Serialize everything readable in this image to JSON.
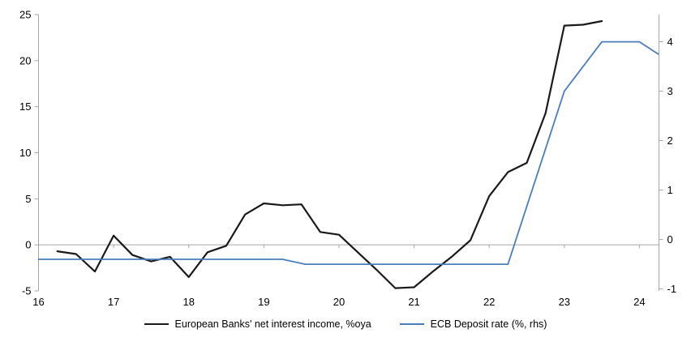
{
  "chart_data": {
    "type": "line",
    "title": "",
    "x_ticks": [
      "16",
      "17",
      "18",
      "19",
      "20",
      "21",
      "22",
      "23",
      "24"
    ],
    "x_tick_values": [
      16,
      17,
      18,
      19,
      20,
      21,
      22,
      23,
      24
    ],
    "x_range": [
      16,
      24.26
    ],
    "left_axis": {
      "ticks": [
        -5,
        0,
        5,
        10,
        15,
        20,
        25
      ],
      "range": [
        -5,
        25
      ]
    },
    "right_axis": {
      "ticks": [
        -1,
        0,
        1,
        2,
        3,
        4
      ],
      "range": [
        -1.04,
        4.55
      ]
    },
    "grid": "zero-line-only",
    "legend_position": "bottom-center",
    "axis_color": "#a6a6a6",
    "text_color": "#000000",
    "series": [
      {
        "name": "European Banks' net interest income, %oya",
        "axis": "left",
        "color": "#1a1a1a",
        "stroke_width": 2.2,
        "points": [
          [
            16.25,
            -0.7
          ],
          [
            16.5,
            -1.0
          ],
          [
            16.75,
            -2.9
          ],
          [
            17.0,
            1.0
          ],
          [
            17.25,
            -1.1
          ],
          [
            17.5,
            -1.8
          ],
          [
            17.75,
            -1.3
          ],
          [
            18.0,
            -3.5
          ],
          [
            18.25,
            -0.8
          ],
          [
            18.5,
            -0.1
          ],
          [
            18.75,
            3.3
          ],
          [
            19.0,
            4.5
          ],
          [
            19.25,
            4.3
          ],
          [
            19.5,
            4.4
          ],
          [
            19.75,
            1.4
          ],
          [
            20.0,
            1.1
          ],
          [
            20.25,
            -0.8
          ],
          [
            20.5,
            -2.7
          ],
          [
            20.75,
            -4.7
          ],
          [
            21.0,
            -4.6
          ],
          [
            21.25,
            -2.9
          ],
          [
            21.5,
            -1.3
          ],
          [
            21.75,
            0.5
          ],
          [
            22.0,
            5.3
          ],
          [
            22.25,
            7.9
          ],
          [
            22.5,
            8.9
          ],
          [
            22.75,
            14.3
          ],
          [
            23.0,
            23.8
          ],
          [
            23.25,
            23.9
          ],
          [
            23.5,
            24.3
          ]
        ]
      },
      {
        "name": "ECB Deposit rate (%, rhs)",
        "axis": "right",
        "color": "#4a7ebb",
        "stroke_width": 1.8,
        "points": [
          [
            16.0,
            -0.4
          ],
          [
            19.25,
            -0.4
          ],
          [
            19.55,
            -0.5
          ],
          [
            22.25,
            -0.5
          ],
          [
            23.0,
            3.0
          ],
          [
            23.5,
            4.0
          ],
          [
            24.0,
            4.0
          ],
          [
            24.25,
            3.75
          ]
        ]
      }
    ]
  }
}
